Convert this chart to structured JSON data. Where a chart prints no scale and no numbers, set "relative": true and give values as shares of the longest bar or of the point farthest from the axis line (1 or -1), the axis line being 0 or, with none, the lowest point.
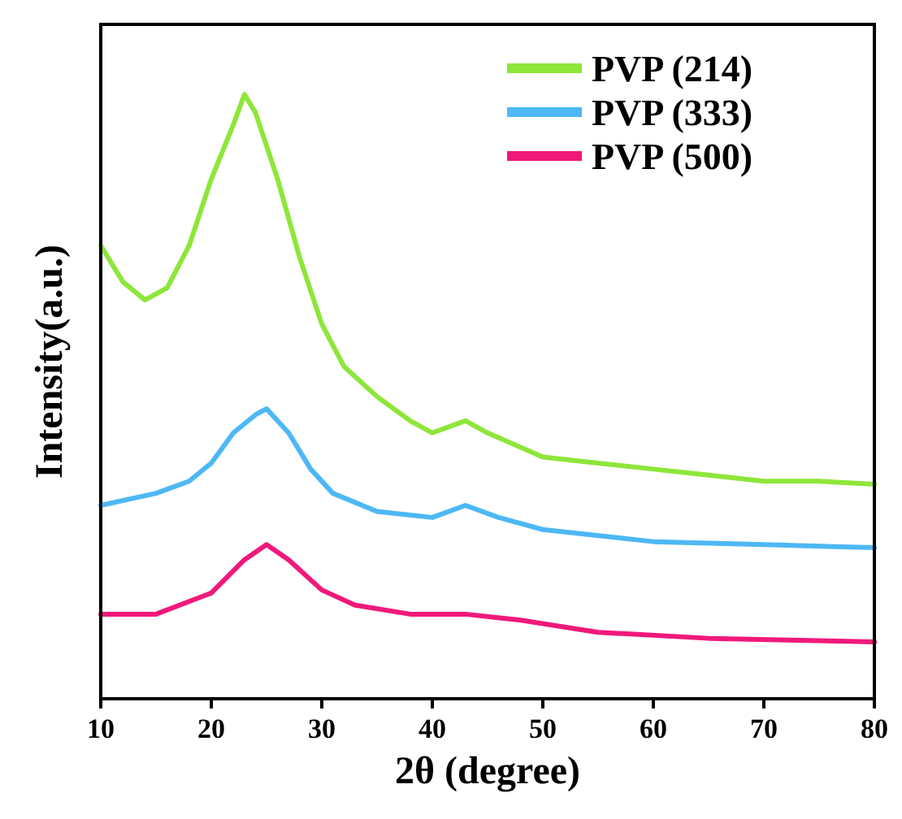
{
  "chart_data": {
    "type": "line",
    "xlabel": "2θ (degree)",
    "ylabel": "Intensity(a.u.)",
    "relative": true,
    "xlim": [
      10,
      80
    ],
    "xticks": [
      10,
      20,
      30,
      40,
      50,
      60,
      70,
      80
    ],
    "legend": "top right",
    "marker": "none",
    "line_style": "solid",
    "grid": false,
    "series": [
      {
        "name": "PVP (214)",
        "color": "#8ee63a",
        "x": [
          10,
          12,
          14,
          16,
          18,
          20,
          22,
          23,
          24,
          26,
          28,
          30,
          32,
          35,
          38,
          40,
          43,
          45,
          50,
          55,
          60,
          65,
          70,
          75,
          80
        ],
        "values": [
          0.75,
          0.69,
          0.66,
          0.68,
          0.75,
          0.86,
          0.95,
          1,
          0.97,
          0.86,
          0.73,
          0.62,
          0.55,
          0.5,
          0.46,
          0.44,
          0.46,
          0.44,
          0.4,
          0.39,
          0.38,
          0.37,
          0.36,
          0.36,
          0.355
        ]
      },
      {
        "name": "PVP (333)",
        "color": "#4db8f5",
        "x": [
          10,
          15,
          18,
          20,
          22,
          24,
          25,
          27,
          29,
          31,
          35,
          40,
          43,
          46,
          50,
          60,
          70,
          80
        ],
        "values": [
          0.32,
          0.34,
          0.36,
          0.39,
          0.44,
          0.47,
          0.48,
          0.44,
          0.38,
          0.34,
          0.31,
          0.3,
          0.32,
          0.3,
          0.28,
          0.26,
          0.255,
          0.25
        ]
      },
      {
        "name": "PVP (500)",
        "color": "#f0197a",
        "x": [
          10,
          15,
          20,
          23,
          25,
          27,
          30,
          33,
          38,
          43,
          48,
          55,
          65,
          80
        ],
        "values": [
          0.14,
          0.14,
          0.175,
          0.23,
          0.255,
          0.23,
          0.18,
          0.155,
          0.14,
          0.14,
          0.13,
          0.11,
          0.1,
          0.094
        ]
      }
    ]
  }
}
